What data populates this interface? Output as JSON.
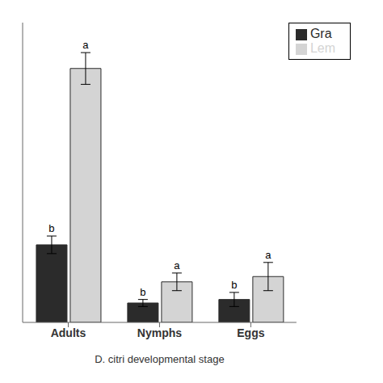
{
  "chart_data": {
    "type": "bar",
    "categories": [
      "Adults",
      "Nymphs",
      "Eggs"
    ],
    "x_label": "D. citri developmental stage",
    "series": [
      {
        "name": "Gra",
        "color": "#2b2b2b",
        "values": [
          0.22,
          0.055,
          0.065
        ],
        "errors": [
          0.025,
          0.01,
          0.02
        ],
        "letters": [
          "b",
          "b",
          "b"
        ]
      },
      {
        "name": "Lem",
        "color": "#d4d4d4",
        "values": [
          0.72,
          0.115,
          0.13
        ],
        "errors": [
          0.045,
          0.025,
          0.04
        ],
        "letters": [
          "a",
          "a",
          "a"
        ]
      }
    ],
    "ylim": [
      0,
      0.85
    ],
    "grid": false,
    "legend": "upper right",
    "tick_labels": "x"
  }
}
